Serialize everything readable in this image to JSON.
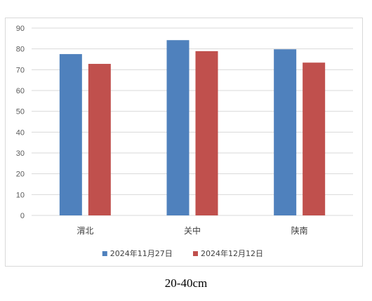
{
  "chart_data": {
    "type": "bar",
    "categories": [
      "渭北",
      "关中",
      "陕南"
    ],
    "series": [
      {
        "name": "2024年11月27日",
        "values": [
          77.5,
          84.2,
          79.8
        ],
        "color": "#4f81bd"
      },
      {
        "name": "2024年12月12日",
        "values": [
          72.8,
          78.9,
          73.4
        ],
        "color": "#c0504d"
      }
    ],
    "yticks": [
      0,
      10,
      20,
      30,
      40,
      50,
      60,
      70,
      80,
      90
    ],
    "ylim": [
      0,
      90
    ],
    "grid": true,
    "legend_position": "bottom",
    "title": "",
    "xlabel": "",
    "ylabel": ""
  },
  "caption": "20-40cm"
}
